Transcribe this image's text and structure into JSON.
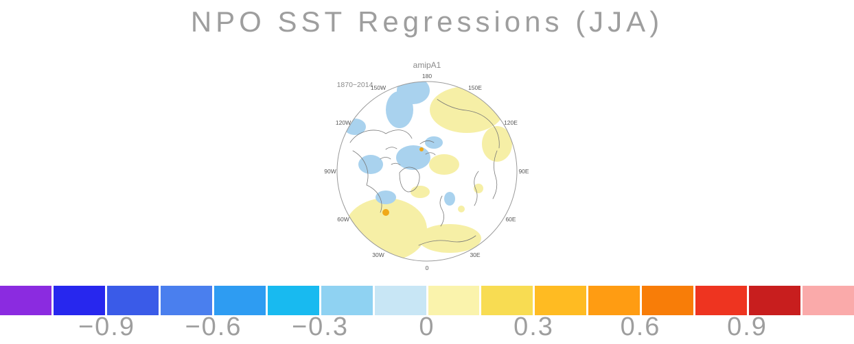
{
  "title": "NPO SST Regressions (JJA)",
  "map": {
    "subtitle": "amipA1",
    "period": "1870−2014",
    "lon_labels": [
      "180",
      "150E",
      "120E",
      "90E",
      "60E",
      "30E",
      "0",
      "30W",
      "60W",
      "90W",
      "120W",
      "150W"
    ]
  },
  "colorbar": {
    "colors": [
      "#8B2BE0",
      "#2727EE",
      "#3A5BE8",
      "#4A7FEE",
      "#2E9CF2",
      "#18BAF0",
      "#8FD2F2",
      "#C8E6F5",
      "#FAF3AC",
      "#F8DC52",
      "#FFBB22",
      "#FF9C12",
      "#F87D08",
      "#EE3420",
      "#C81E1E",
      "#FAAAAA"
    ],
    "tick_labels": [
      "−0.9",
      "−0.6",
      "−0.3",
      "0",
      "0.3",
      "0.6",
      "0.9"
    ]
  },
  "chart_data": {
    "type": "heatmap",
    "title": "NPO SST Regressions (JJA)",
    "panel_label": "amipA1",
    "period": "1870−2014",
    "projection": "north polar stereographic",
    "lon_ring_labels": [
      "180",
      "150E",
      "120E",
      "90E",
      "60E",
      "30E",
      "0",
      "30W",
      "60W",
      "90W",
      "120W",
      "150W"
    ],
    "colorbar": {
      "orientation": "horizontal",
      "bin_width": 0.15,
      "levels": [
        -1.05,
        -0.9,
        -0.75,
        -0.6,
        -0.45,
        -0.3,
        -0.15,
        0,
        0.15,
        0.3,
        0.45,
        0.6,
        0.75,
        0.9,
        1.05
      ],
      "colors": [
        "#8B2BE0",
        "#2727EE",
        "#3A5BE8",
        "#4A7FEE",
        "#2E9CF2",
        "#18BAF0",
        "#8FD2F2",
        "#C8E6F5",
        "#FAF3AC",
        "#F8DC52",
        "#FFBB22",
        "#FF9C12",
        "#F87D08",
        "#EE3420",
        "#C81E1E",
        "#FAAAAA"
      ],
      "tick_labels": [
        "−0.9",
        "−0.6",
        "−0.3",
        "0",
        "0.3",
        "0.6",
        "0.9"
      ]
    },
    "map_fill_colors": {
      "weak_positive": "#F6EFA6",
      "weak_negative": "#A9D2EE",
      "moderate_positive": "#F0A818",
      "land": "#FFFFFF"
    }
  }
}
